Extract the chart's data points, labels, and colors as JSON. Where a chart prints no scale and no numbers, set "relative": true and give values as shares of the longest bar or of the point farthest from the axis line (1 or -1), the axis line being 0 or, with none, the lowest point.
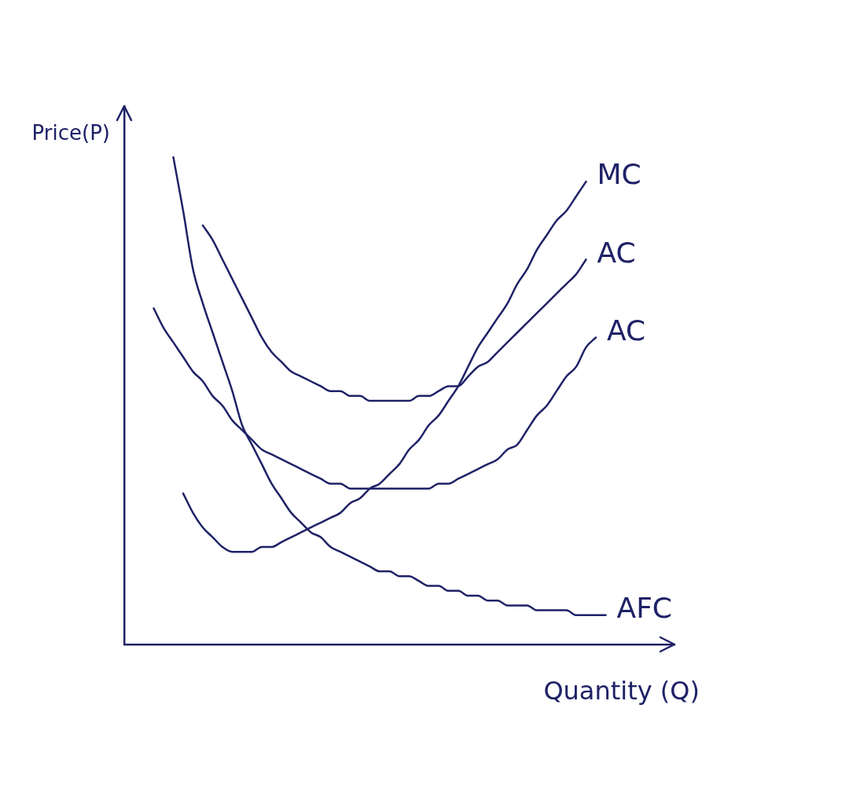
{
  "chart_data": {
    "type": "line",
    "relative": true,
    "xlabel": "Quantity (Q)",
    "ylabel": "Price(P)",
    "marker": "none",
    "line_style": "solid",
    "categories": [
      null,
      null,
      null,
      null,
      null,
      null,
      null,
      null,
      null,
      null,
      null,
      null,
      null,
      null,
      null,
      null,
      null,
      null,
      null,
      null,
      null,
      null,
      null,
      null,
      null,
      null,
      null,
      null,
      null,
      null,
      null,
      null,
      null,
      null,
      null,
      null,
      null,
      null,
      null,
      null,
      null,
      null,
      null,
      null,
      null,
      null,
      null,
      null,
      null,
      null,
      null,
      null,
      null,
      null,
      null,
      null,
      null
    ],
    "series": [
      {
        "name": "MC",
        "color": "#1f2266",
        "values": [
          null,
          null,
          null,
          null,
          null,
          null,
          0.31,
          0.27,
          0.24,
          0.22,
          0.2,
          0.19,
          0.19,
          0.19,
          0.2,
          0.2,
          0.21,
          0.22,
          0.23,
          0.24,
          0.25,
          0.26,
          0.27,
          0.29,
          0.3,
          0.32,
          0.33,
          0.35,
          0.37,
          0.4,
          0.42,
          0.45,
          0.47,
          0.5,
          0.53,
          0.57,
          0.61,
          0.64,
          0.67,
          0.7,
          0.74,
          0.77,
          0.81,
          0.84,
          0.87,
          0.89,
          0.92,
          0.95,
          null,
          null,
          null,
          null,
          null,
          null,
          null,
          null,
          null
        ]
      },
      {
        "name": "AC",
        "color": "#1f2266",
        "values": [
          null,
          null,
          null,
          null,
          null,
          null,
          null,
          null,
          0.86,
          0.83,
          0.79,
          0.75,
          0.71,
          0.67,
          0.63,
          0.6,
          0.58,
          0.56,
          0.55,
          0.54,
          0.53,
          0.52,
          0.52,
          0.51,
          0.51,
          0.5,
          0.5,
          0.5,
          0.5,
          0.5,
          0.51,
          0.51,
          0.52,
          0.53,
          0.53,
          0.55,
          0.57,
          0.58,
          0.6,
          0.62,
          0.64,
          0.66,
          0.68,
          0.7,
          0.72,
          0.74,
          0.76,
          0.79,
          null,
          null,
          null,
          null,
          null,
          null,
          null,
          null,
          null
        ]
      },
      {
        "name": "AC",
        "color": "#1f2266",
        "values": [
          null,
          null,
          null,
          0.69,
          0.65,
          0.62,
          0.59,
          0.56,
          0.54,
          0.51,
          0.49,
          0.46,
          0.44,
          0.42,
          0.4,
          0.39,
          0.38,
          0.37,
          0.36,
          0.35,
          0.34,
          0.33,
          0.33,
          0.32,
          0.32,
          0.32,
          0.32,
          0.32,
          0.32,
          0.32,
          0.32,
          0.32,
          0.33,
          0.33,
          0.34,
          0.35,
          0.36,
          0.37,
          0.38,
          0.4,
          0.41,
          0.44,
          0.47,
          0.49,
          0.52,
          0.55,
          0.57,
          0.61,
          0.63,
          null,
          null,
          null,
          null,
          null,
          null,
          null,
          null
        ]
      },
      {
        "name": "AFC",
        "color": "#1f2266",
        "values": [
          null,
          null,
          null,
          null,
          null,
          1,
          0.89,
          0.77,
          0.7,
          0.64,
          0.58,
          0.52,
          0.45,
          0.41,
          0.37,
          0.33,
          0.3,
          0.27,
          0.25,
          0.23,
          0.22,
          0.2,
          0.19,
          0.18,
          0.17,
          0.16,
          0.15,
          0.15,
          0.14,
          0.14,
          0.13,
          0.12,
          0.12,
          0.11,
          0.11,
          0.1,
          0.1,
          0.09,
          0.09,
          0.08,
          0.08,
          0.08,
          0.07,
          0.07,
          0.07,
          0.07,
          0.06,
          0.06,
          0.06,
          0.06,
          null,
          null,
          null,
          null,
          null,
          null,
          null
        ]
      }
    ]
  }
}
